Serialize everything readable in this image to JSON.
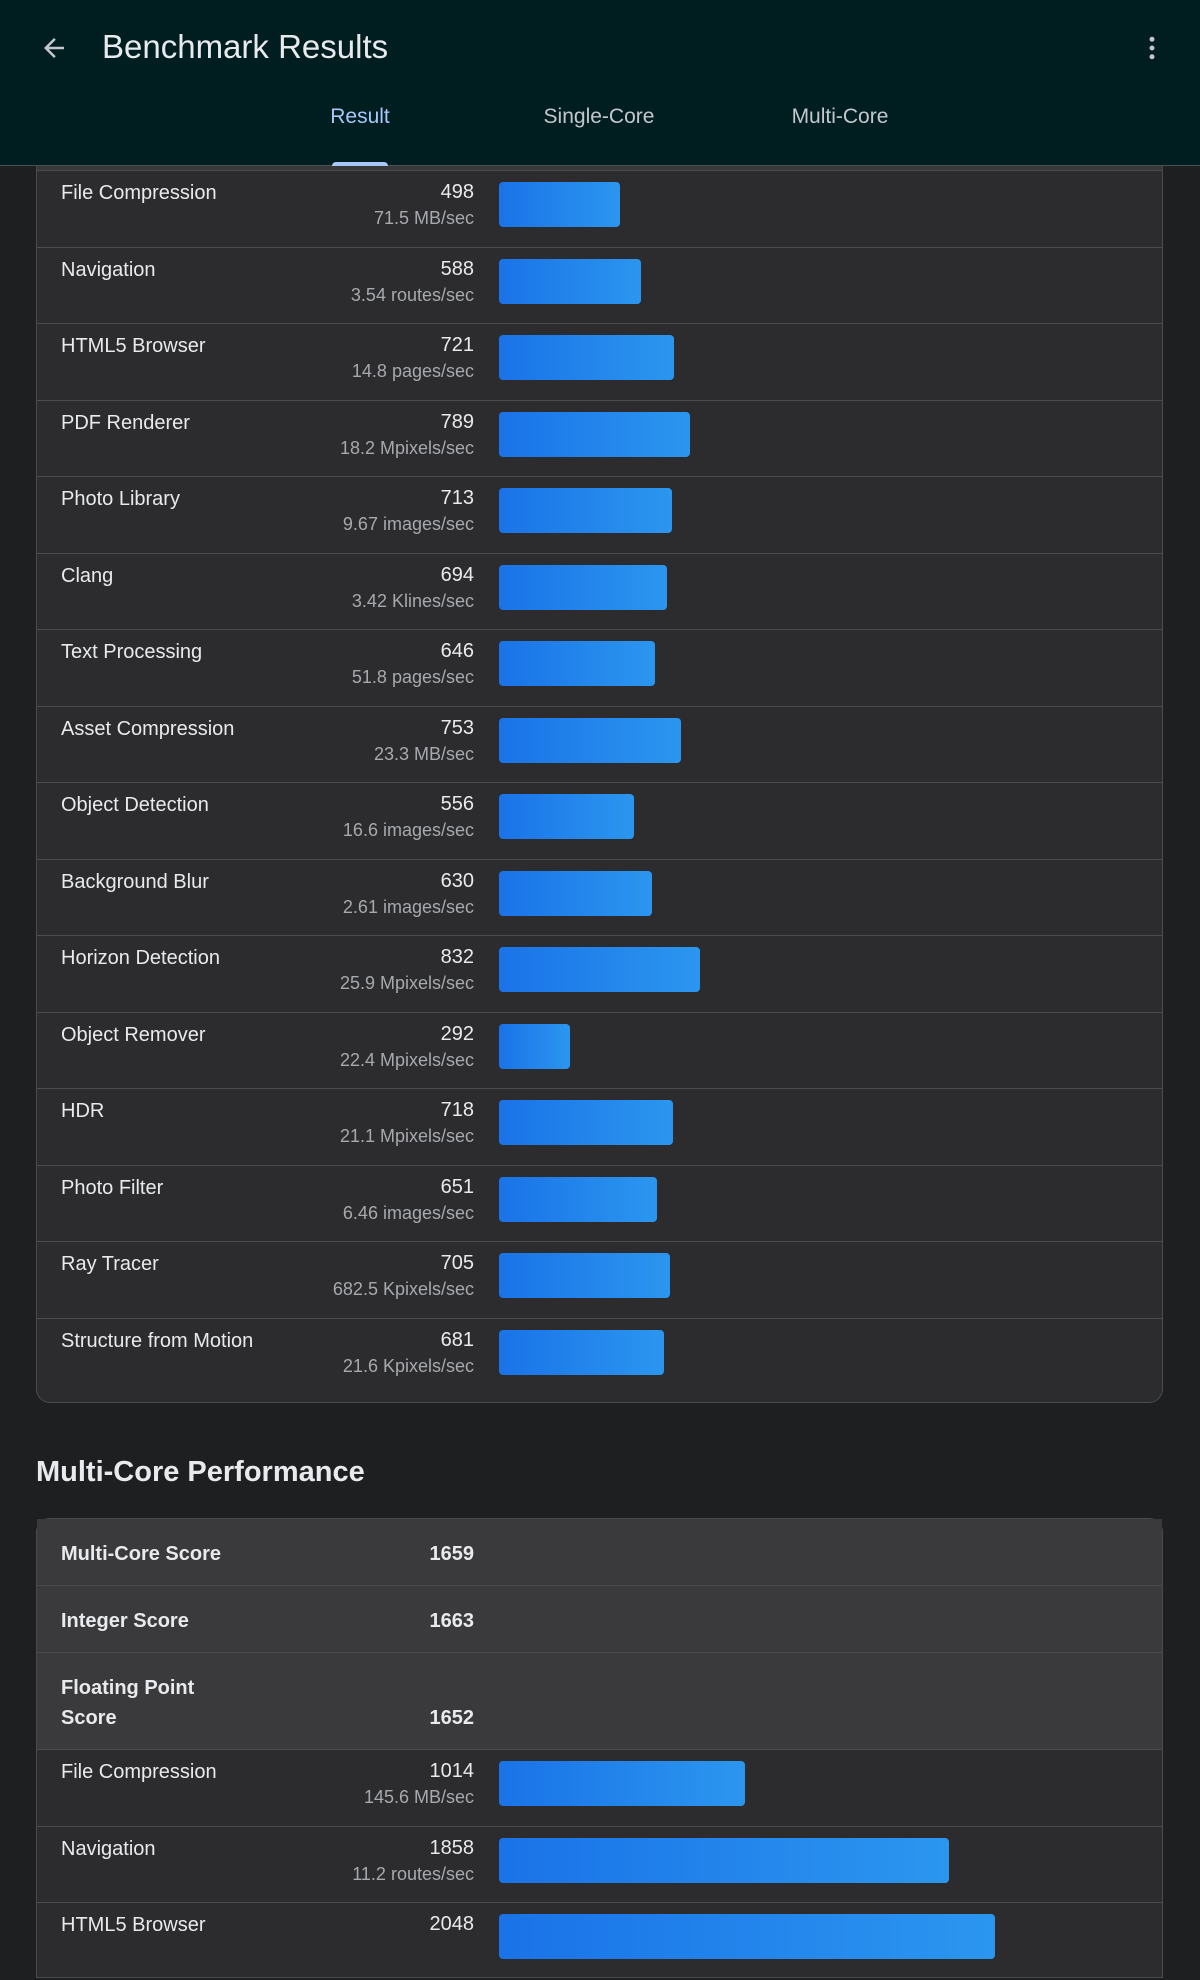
{
  "header": {
    "title": "Benchmark Results",
    "tabs": [
      {
        "label": "Result",
        "active": true
      },
      {
        "label": "Single-Core",
        "active": false
      },
      {
        "label": "Multi-Core",
        "active": false
      }
    ]
  },
  "accent_color": "#a8c7fa",
  "bar_color": "#1a73e8",
  "bar_scale": {
    "reference_score": 832,
    "reference_fraction": 0.1787
  },
  "single_core_rows": [
    {
      "name": "File Compression",
      "score": 498,
      "rate": "71.5 MB/sec"
    },
    {
      "name": "Navigation",
      "score": 588,
      "rate": "3.54 routes/sec"
    },
    {
      "name": "HTML5 Browser",
      "score": 721,
      "rate": "14.8 pages/sec"
    },
    {
      "name": "PDF Renderer",
      "score": 789,
      "rate": "18.2 Mpixels/sec"
    },
    {
      "name": "Photo Library",
      "score": 713,
      "rate": "9.67 images/sec"
    },
    {
      "name": "Clang",
      "score": 694,
      "rate": "3.42 Klines/sec"
    },
    {
      "name": "Text Processing",
      "score": 646,
      "rate": "51.8 pages/sec"
    },
    {
      "name": "Asset Compression",
      "score": 753,
      "rate": "23.3 MB/sec"
    },
    {
      "name": "Object Detection",
      "score": 556,
      "rate": "16.6 images/sec"
    },
    {
      "name": "Background Blur",
      "score": 630,
      "rate": "2.61 images/sec"
    },
    {
      "name": "Horizon Detection",
      "score": 832,
      "rate": "25.9 Mpixels/sec"
    },
    {
      "name": "Object Remover",
      "score": 292,
      "rate": "22.4 Mpixels/sec"
    },
    {
      "name": "HDR",
      "score": 718,
      "rate": "21.1 Mpixels/sec"
    },
    {
      "name": "Photo Filter",
      "score": 651,
      "rate": "6.46 images/sec"
    },
    {
      "name": "Ray Tracer",
      "score": 705,
      "rate": "682.5 Kpixels/sec"
    },
    {
      "name": "Structure from Motion",
      "score": 681,
      "rate": "21.6 Kpixels/sec"
    }
  ],
  "multi_core": {
    "section_title": "Multi-Core Performance",
    "summary": [
      {
        "name": "Multi-Core Score",
        "score": "1659"
      },
      {
        "name": "Integer Score",
        "score": "1663"
      },
      {
        "name": "Floating Point Score",
        "score": "1652"
      }
    ],
    "rows": [
      {
        "name": "File Compression",
        "score": 1014,
        "rate": "145.6 MB/sec"
      },
      {
        "name": "Navigation",
        "score": 1858,
        "rate": "11.2 routes/sec"
      },
      {
        "name": "HTML5 Browser",
        "score": 2048,
        "rate": ""
      }
    ]
  }
}
